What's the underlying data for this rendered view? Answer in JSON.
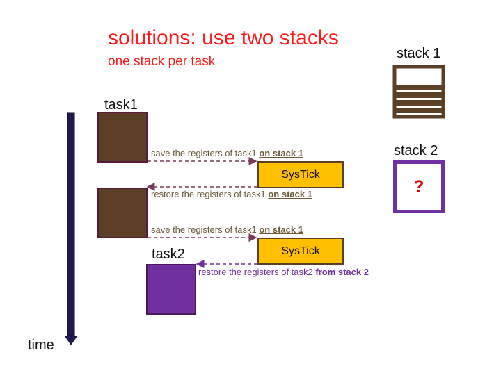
{
  "title": "solutions: use two stacks",
  "subtitle": "one stack per task",
  "stack1_label": "stack 1",
  "stack2_label": "stack 2",
  "stack2_content": "?",
  "task1_label": "task1",
  "task2_label": "task2",
  "time_label": "time",
  "systick_label": "SysTick",
  "messages": {
    "save1": {
      "text": "save the registers of task1 ",
      "bold": "on stack 1"
    },
    "restore1": {
      "text": "restore the registers of task1 ",
      "bold": "on stack 1"
    },
    "save2": {
      "text": "save the registers of task1 ",
      "bold": "on stack 1"
    },
    "restore2": {
      "text": "restore the registers of task2 ",
      "bold": "from stack 2"
    }
  },
  "colors": {
    "title": "#ff1a1a",
    "task1": "#5b3f26",
    "task2": "#7030a0",
    "systick": "#ffc000",
    "time_arrow": "#1f1a4d"
  }
}
